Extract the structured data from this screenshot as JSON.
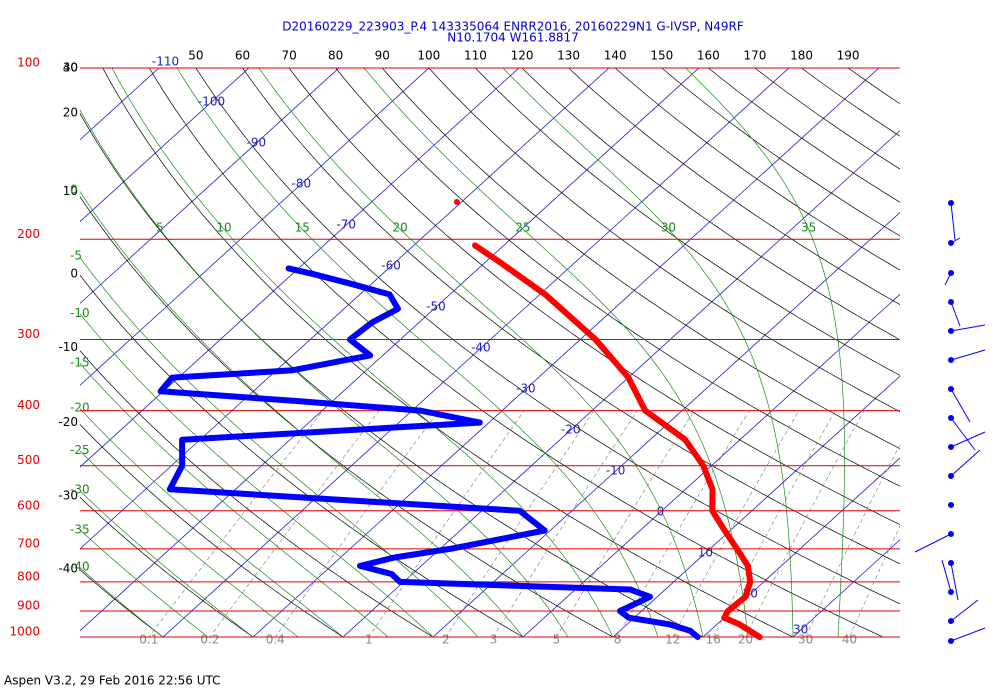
{
  "chart_data": {
    "type": "skewt",
    "title": "D20160229_223903_P.4 143335064 ENRR2016, 20160229N1 G-IVSP, N49RF",
    "subtitle": "N10.1704 W161.8817",
    "footer": "Aspen V3.2, 29 Feb 2016  22:56 UTC",
    "ylim": [
      1000,
      100
    ],
    "log_y": true,
    "yticks": [
      100,
      200,
      300,
      400,
      500,
      600,
      700,
      800,
      900,
      1000
    ],
    "isotherms": [
      -110,
      -100,
      -90,
      -80,
      -70,
      -60,
      -50,
      -40,
      -30,
      -20,
      -10,
      0,
      10,
      20,
      30
    ],
    "dry_adiabats_top": [
      50,
      60,
      70,
      80,
      90,
      100,
      110,
      120,
      130,
      140,
      150,
      160,
      170,
      180,
      190
    ],
    "dry_adiabats_left": [
      40,
      30,
      20,
      10,
      0,
      -10,
      -20,
      -30,
      -40
    ],
    "moist_adiabats_top": [
      5,
      10,
      15,
      20,
      25,
      30,
      35
    ],
    "moist_adiabats_left": [
      0,
      -5,
      -10,
      -15,
      -20,
      -25,
      -30,
      -35,
      -40
    ],
    "mixing_ratios": [
      0.1,
      0.2,
      0.4,
      1,
      2,
      3,
      5,
      8,
      12,
      16,
      20,
      30,
      40
    ],
    "series": [
      {
        "color": "#ff0000",
        "pressure": [
          1000,
          950,
          925,
          900,
          850,
          800,
          750,
          700,
          650,
          600,
          550,
          500,
          450,
          400,
          350,
          300,
          250,
          220,
          205
        ],
        "values": [
          26.3,
          22.5,
          20.0,
          19.6,
          19.8,
          18.5,
          16.3,
          13.0,
          9.4,
          5.6,
          3.0,
          -0.9,
          -6.1,
          -14.1,
          -20.0,
          -28.3,
          -39.4,
          -48.2,
          -53.2
        ]
      },
      {
        "color": "#ff0000",
        "pressure": [
          172
        ],
        "values": [
          -60.5
        ]
      },
      {
        "color": "#0000ff",
        "pressure": [
          1000,
          975,
          950,
          925,
          900,
          850,
          825,
          800,
          775,
          750,
          725,
          700,
          650,
          600,
          550,
          500,
          450,
          420,
          400,
          385,
          370,
          350,
          340,
          320,
          300,
          280,
          265,
          250,
          240,
          230,
          225
        ],
        "values": [
          19.4,
          17.8,
          14.7,
          9.4,
          7.6,
          9.2,
          6.1,
          -20.4,
          -22.3,
          -26.8,
          -24.0,
          -18.9,
          -10.6,
          -15.8,
          -57.3,
          -58.8,
          -62.0,
          -31.0,
          -39.1,
          -53.8,
          -70.3,
          -70.7,
          -58.3,
          -51.4,
          -55.6,
          -55.2,
          -54.0,
          -56.7,
          -62.0,
          -67.8,
          -71.1
        ]
      }
    ]
  }
}
